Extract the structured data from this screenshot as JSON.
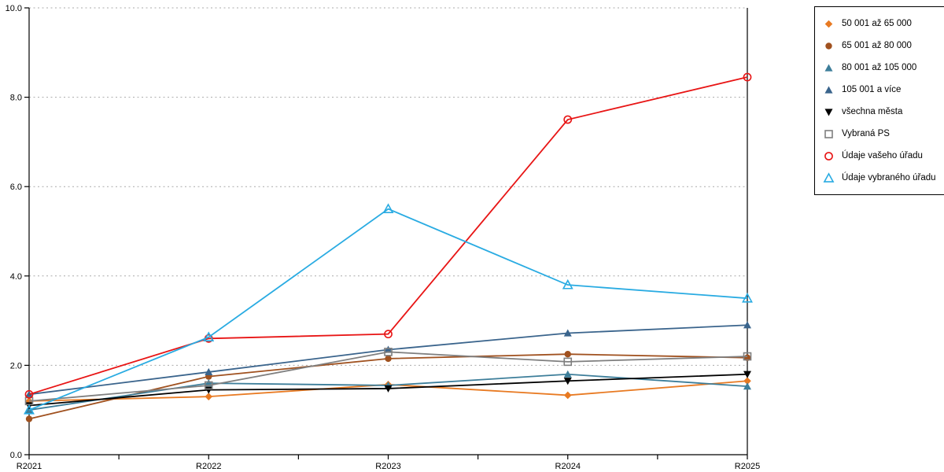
{
  "chart_data": {
    "type": "line",
    "categories": [
      "R2021",
      "R2022",
      "R2023",
      "R2024",
      "R2025"
    ],
    "xlabel": "",
    "ylabel": "",
    "title": "",
    "ylim": [
      0,
      10
    ],
    "yticks": [
      0,
      2,
      4,
      6,
      8,
      10
    ],
    "ytick_labels": [
      "0.0",
      "2.0",
      "4.0",
      "6.0",
      "8.0",
      "10.0"
    ],
    "grid": "horizontal-dotted",
    "grid_color": "#aaaaaa",
    "axis_color": "#000000",
    "legend_position": "outside-top-right",
    "series": [
      {
        "name": "50 001 až 65 000",
        "marker": "diamond",
        "fill": "filled",
        "color": "#E87A22",
        "values": [
          1.2,
          1.3,
          1.57,
          1.33,
          1.65
        ]
      },
      {
        "name": "65 001 až 80 000",
        "marker": "circle",
        "fill": "filled",
        "color": "#A0511F",
        "values": [
          0.8,
          1.75,
          2.15,
          2.25,
          2.17
        ]
      },
      {
        "name": "80 001 až 105 000",
        "marker": "triangle-up",
        "fill": "filled",
        "color": "#3D7E9A",
        "values": [
          1.0,
          1.6,
          1.55,
          1.8,
          1.53
        ]
      },
      {
        "name": "105 001 a více",
        "marker": "triangle-up",
        "fill": "filled",
        "color": "#3A648C",
        "values": [
          1.35,
          1.85,
          2.35,
          2.72,
          2.9
        ]
      },
      {
        "name": "všechna města",
        "marker": "triangle-down",
        "fill": "filled",
        "color": "#000000",
        "values": [
          1.1,
          1.45,
          1.48,
          1.65,
          1.8
        ]
      },
      {
        "name": "Vybraná PS",
        "marker": "square",
        "fill": "open",
        "color": "#7F7F7F",
        "values": [
          1.2,
          1.55,
          2.3,
          2.08,
          2.2
        ]
      },
      {
        "name": "Údaje vašeho úřadu",
        "marker": "circle",
        "fill": "open",
        "color": "#E81515",
        "values": [
          1.35,
          2.6,
          2.7,
          7.5,
          8.45
        ]
      },
      {
        "name": "Údaje vybraného úřadu",
        "marker": "triangle-up",
        "fill": "open",
        "color": "#29ABE2",
        "values": [
          1.0,
          2.63,
          5.5,
          3.8,
          3.5
        ]
      }
    ]
  }
}
